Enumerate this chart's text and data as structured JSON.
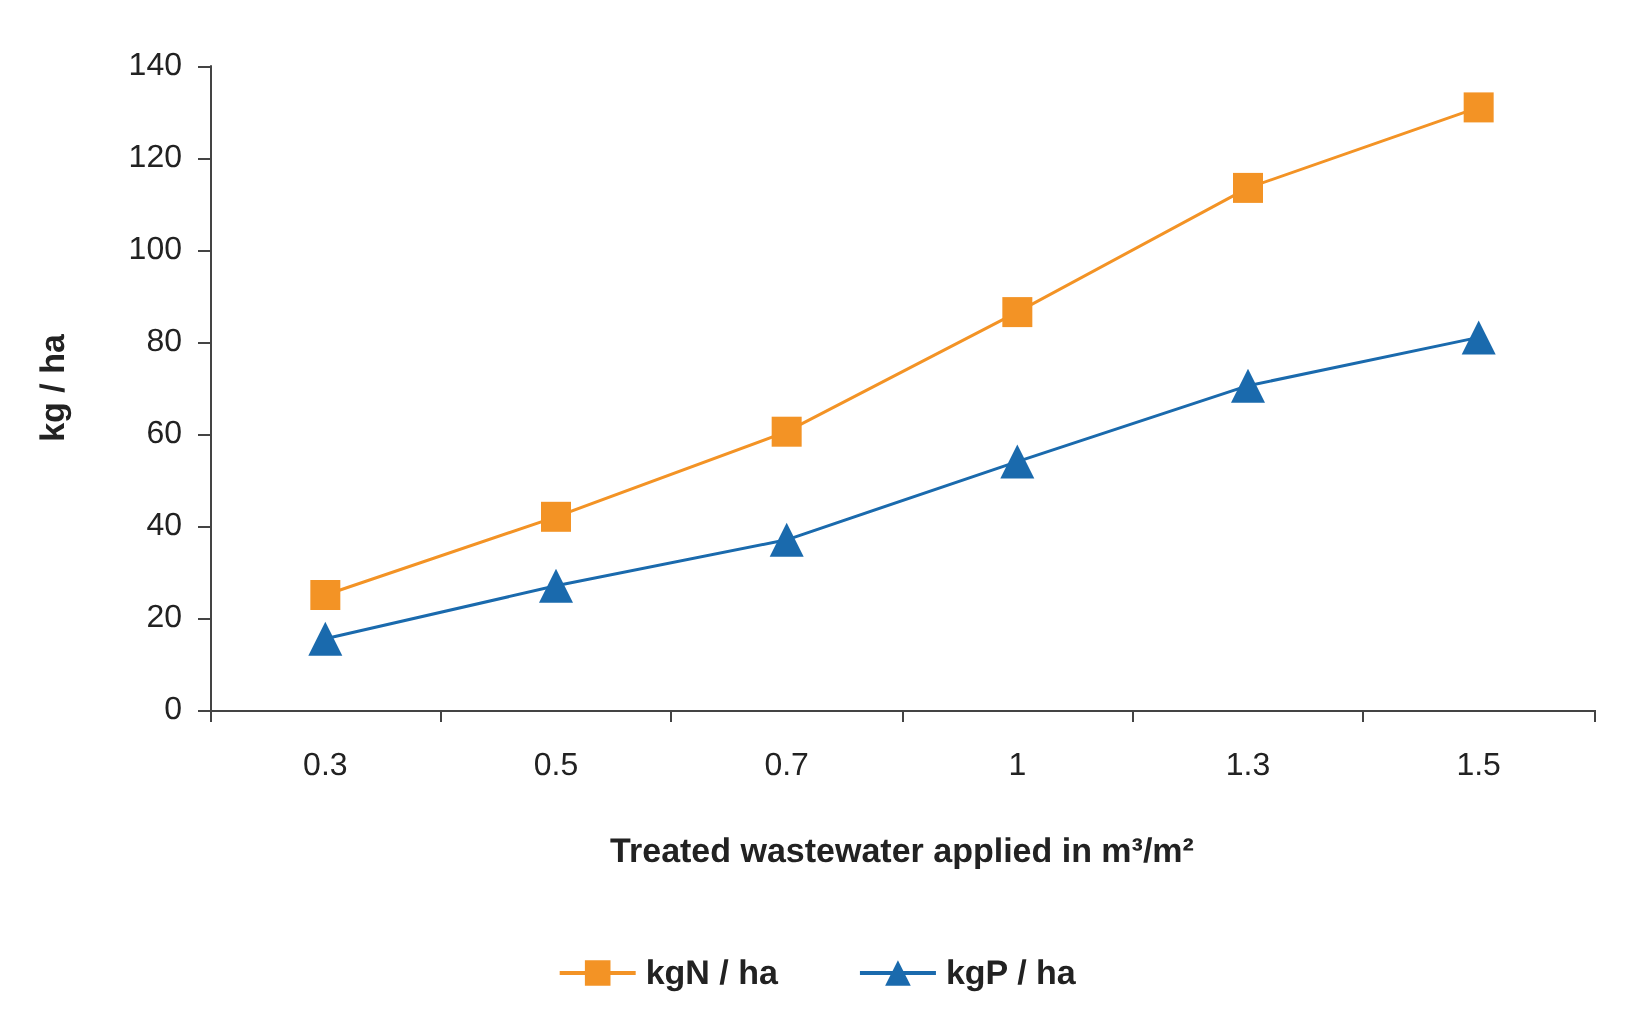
{
  "chart_data": {
    "type": "line",
    "xlabel": "Treated wastewater applied in m³/m²",
    "ylabel": "kg / ha",
    "categories": [
      "0.3",
      "0.5",
      "0.7",
      "1",
      "1.3",
      "1.5"
    ],
    "series": [
      {
        "name": "kgN / ha",
        "color": "#f39325",
        "marker": "square",
        "values": [
          25,
          42,
          60.5,
          86.5,
          113.5,
          131
        ]
      },
      {
        "name": "kgP / ha",
        "color": "#1a6aad",
        "marker": "triangle",
        "values": [
          15.5,
          27,
          37,
          54,
          70.5,
          81
        ]
      }
    ],
    "ylim": [
      0,
      140
    ],
    "yticks": [
      0,
      20,
      40,
      60,
      80,
      100,
      120,
      140
    ],
    "grid": false,
    "legend": "bottom",
    "line_style": "solid"
  }
}
